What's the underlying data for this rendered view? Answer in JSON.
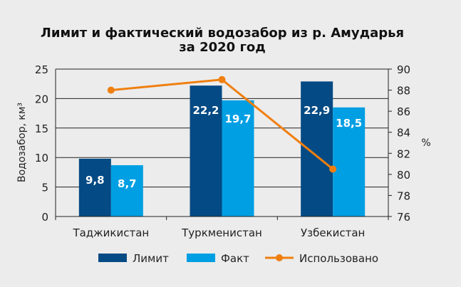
{
  "chart_data": {
    "type": "bar",
    "title": "Лимит и фактический водозабор из р. Амударья",
    "subtitle": "за 2020 год",
    "ylabel": "Водозабор, км³",
    "y2label": "%",
    "categories": [
      "Таджикистан",
      "Туркменистан",
      "Узбекистан"
    ],
    "ylim": [
      0,
      25
    ],
    "yticks": [
      0,
      5,
      10,
      15,
      20,
      25
    ],
    "y2lim": [
      76,
      90
    ],
    "y2ticks": [
      76,
      78,
      80,
      82,
      84,
      86,
      88,
      90
    ],
    "grid": true,
    "legend_position": "bottom",
    "series": [
      {
        "name": "Лимит",
        "type": "bar",
        "axis": "left",
        "color": "#044a84",
        "values": [
          9.8,
          22.2,
          22.9
        ],
        "labels": [
          "9,8",
          "22,2",
          "22,9"
        ]
      },
      {
        "name": "Факт",
        "type": "bar",
        "axis": "left",
        "color": "#009fe3",
        "values": [
          8.7,
          19.7,
          18.5
        ],
        "labels": [
          "8,7",
          "19,7",
          "18,5"
        ]
      },
      {
        "name": "Использовано",
        "type": "line",
        "axis": "right",
        "color": "#f07f0f",
        "values": [
          88.0,
          89.0,
          80.5
        ]
      }
    ]
  }
}
